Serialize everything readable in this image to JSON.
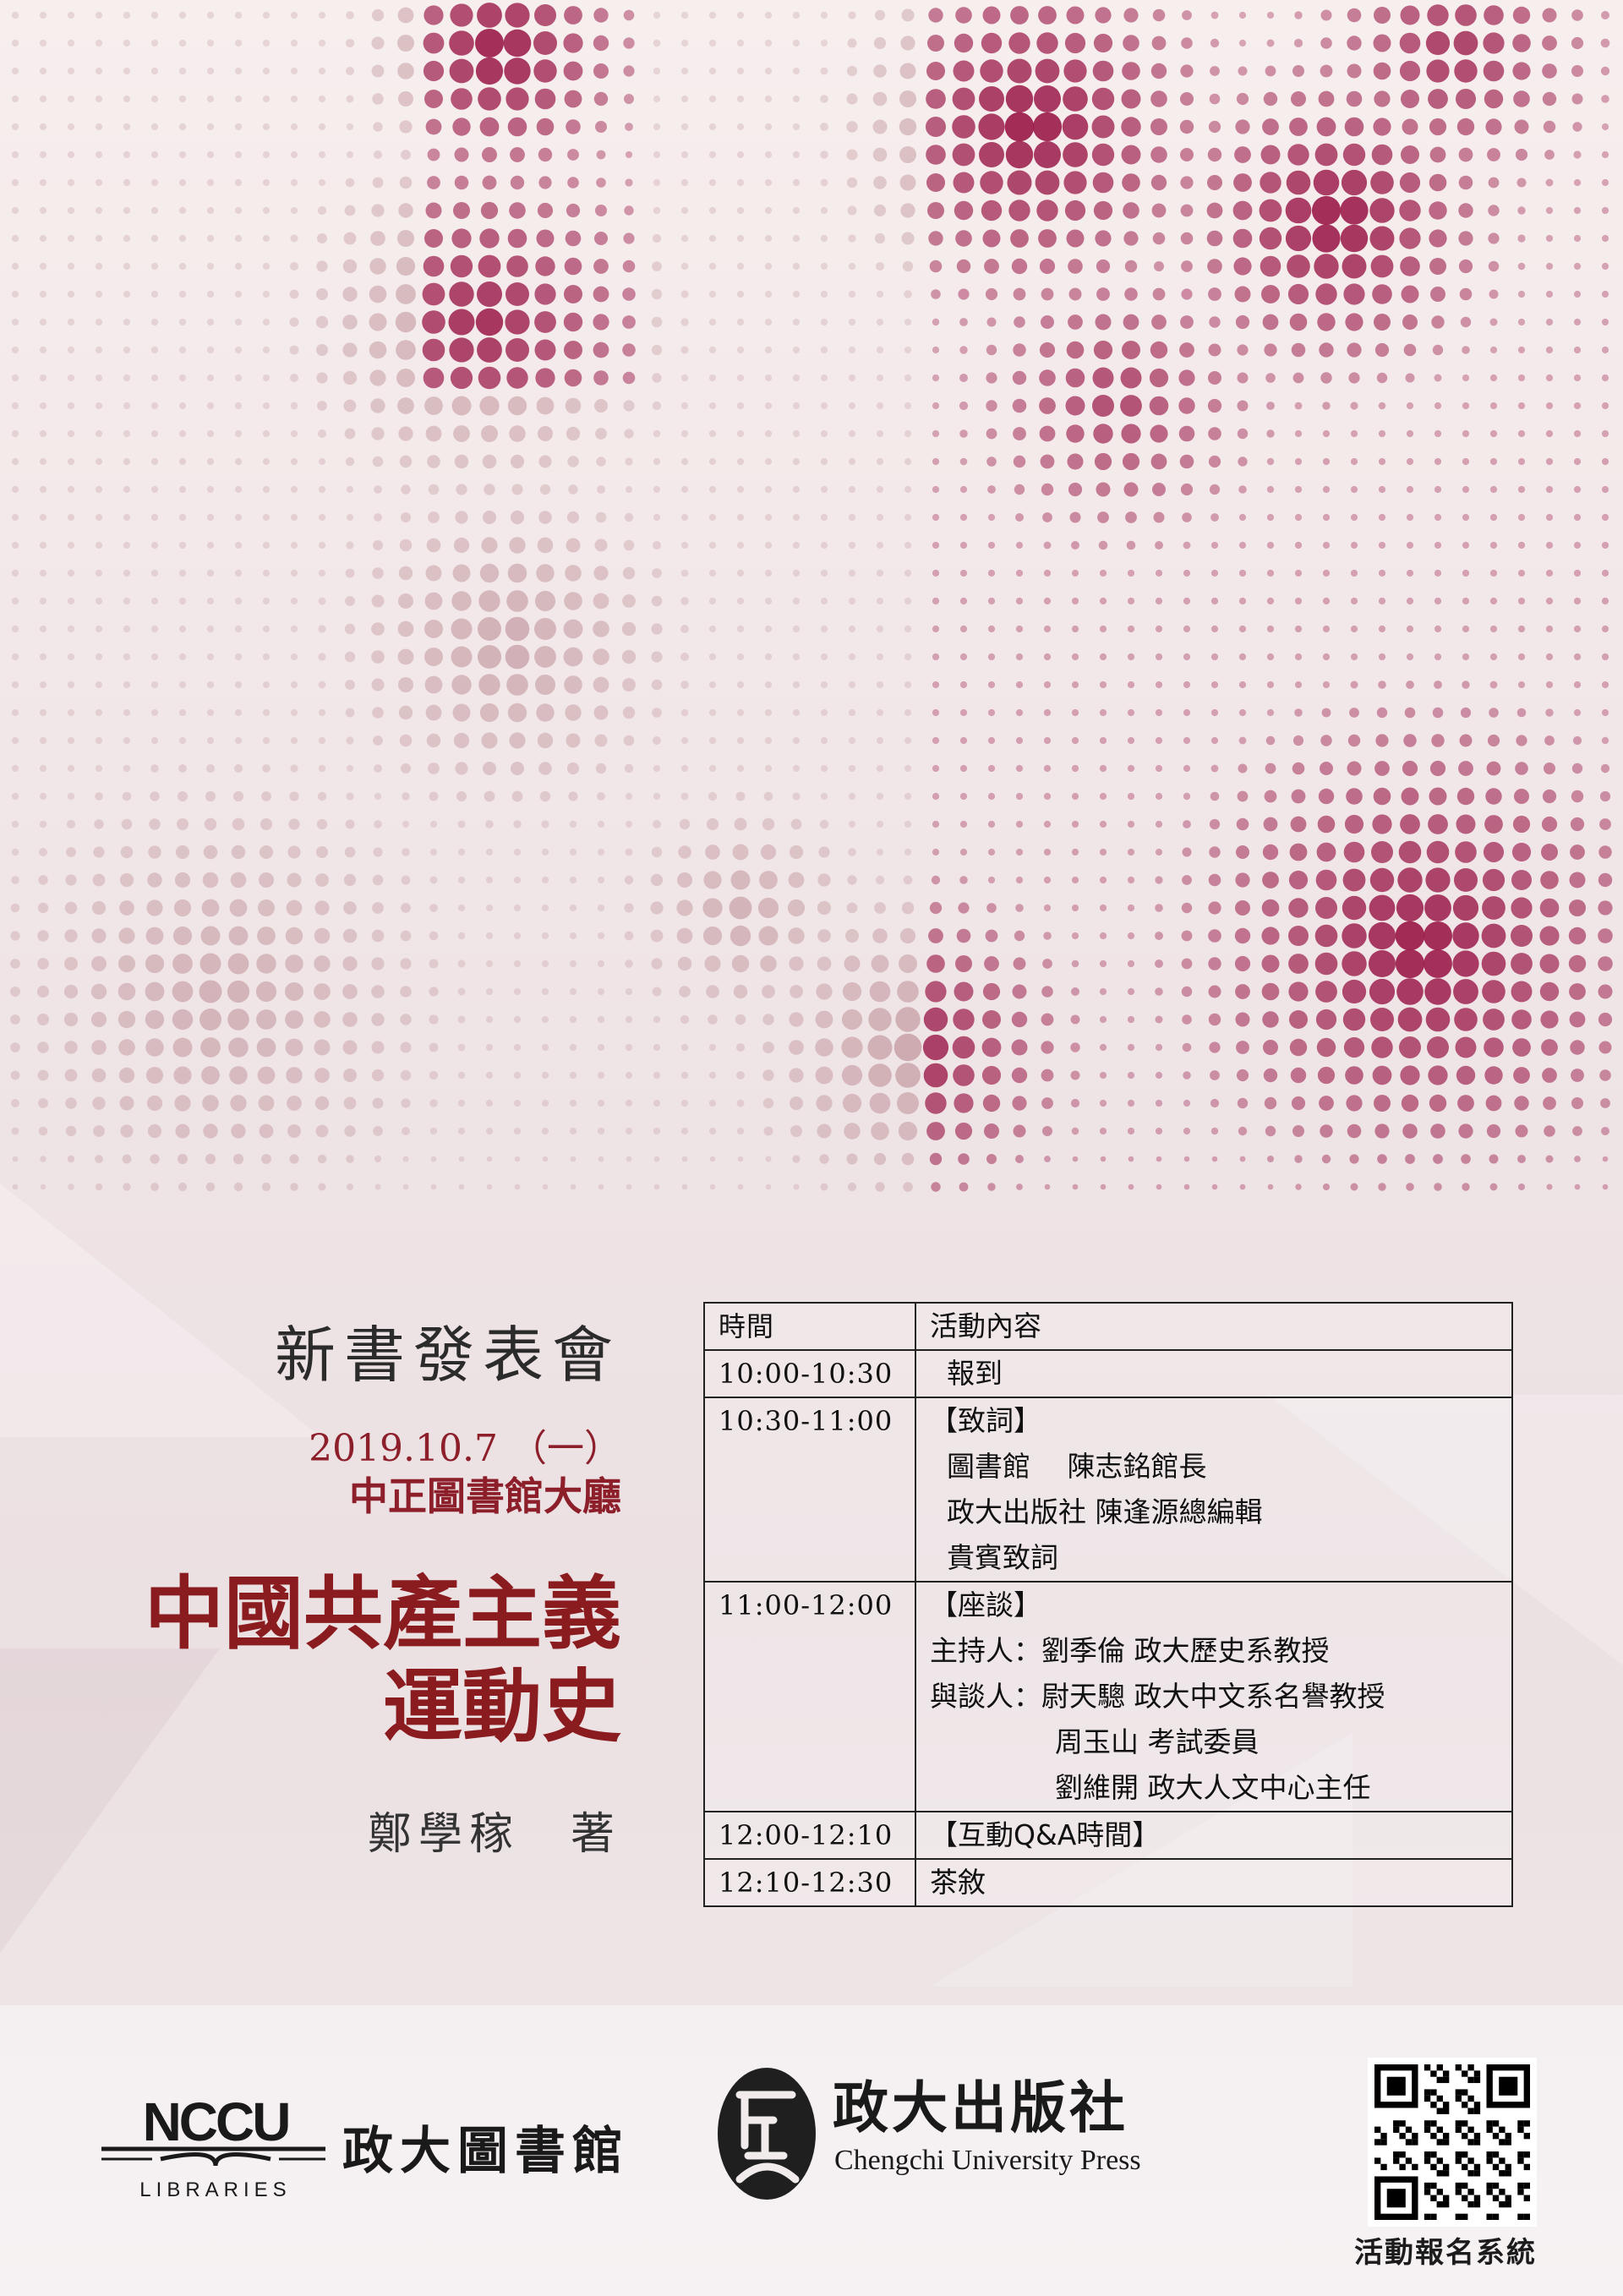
{
  "poster": {
    "event_name": "新書發表會",
    "date": "2019.10.7 （一）",
    "venue": "中正圖書館大廳",
    "book_title_lines": [
      "中國共產主義",
      "運動史"
    ],
    "author": "鄭學稼　著"
  },
  "schedule": {
    "headers": [
      "時間",
      "活動內容"
    ],
    "rows": [
      {
        "time": "10:00-10:30",
        "lines": [
          {
            "text": "報到",
            "indent": 1
          }
        ]
      },
      {
        "time": "10:30-11:00",
        "lines": [
          {
            "text": "【致詞】",
            "indent": 0
          },
          {
            "text": "圖書館　 陳志銘館長",
            "indent": 1
          },
          {
            "text": "政大出版社 陳逢源總編輯",
            "indent": 1
          },
          {
            "text": "貴賓致詞",
            "indent": 1
          }
        ]
      },
      {
        "time": "11:00-12:00",
        "lines": [
          {
            "text": "【座談】",
            "indent": 0
          },
          {
            "text": "主持人：劉季倫 政大歷史系教授",
            "indent": 0
          },
          {
            "text": "與談人：尉天驄 政大中文系名譽教授",
            "indent": 0
          },
          {
            "text": "周玉山 考試委員",
            "indent": 2
          },
          {
            "text": "劉維開 政大人文中心主任",
            "indent": 2
          }
        ]
      },
      {
        "time": "12:00-12:10",
        "lines": [
          {
            "text": "【互動Q&A時間】",
            "indent": 0
          }
        ]
      },
      {
        "time": "12:10-12:30",
        "lines": [
          {
            "text": "茶敘",
            "indent": 0
          }
        ]
      }
    ]
  },
  "logos": {
    "library_wordmark": "NCCU",
    "library_sub": "LIBRARIES",
    "library_name": "政大圖書館",
    "press_name": "政大出版社",
    "press_en": "Chengchi University Press",
    "qr_caption": "活動報名系統"
  },
  "colors": {
    "accent": "#8a1b1f",
    "dot_dark": "#9b1b4a",
    "dot_light": "#c9a3a9"
  }
}
